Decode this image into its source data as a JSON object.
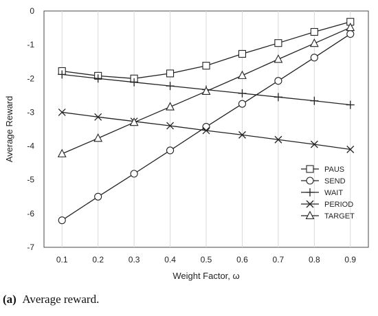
{
  "chart_data": {
    "type": "line",
    "x": [
      0.1,
      0.2,
      0.3,
      0.4,
      0.5,
      0.6,
      0.7,
      0.8,
      0.9
    ],
    "x_tick_labels": [
      "0.1",
      "0.2",
      "0.3",
      "0.4",
      "0.5",
      "0.6",
      "0.7",
      "0.8",
      "0.9"
    ],
    "y_tick_labels": [
      "0",
      "-1",
      "-2",
      "-3",
      "-4",
      "-5",
      "-6",
      "-7"
    ],
    "xlim": [
      0.05,
      0.95
    ],
    "ylim": [
      -7,
      0
    ],
    "xlabel": "Weight Factor, ω",
    "ylabel": "Average Reward",
    "grid": "vertical",
    "legend_position": "bottom-right",
    "series": [
      {
        "name": "PAUS",
        "marker": "square",
        "values": [
          -1.78,
          -1.92,
          -2.0,
          -1.85,
          -1.62,
          -1.27,
          -0.95,
          -0.62,
          -0.32
        ]
      },
      {
        "name": "SEND",
        "marker": "circle",
        "values": [
          -6.2,
          -5.5,
          -4.82,
          -4.13,
          -3.43,
          -2.75,
          -2.07,
          -1.38,
          -0.68
        ]
      },
      {
        "name": "WAIT",
        "marker": "plus",
        "values": [
          -1.88,
          -2.0,
          -2.11,
          -2.22,
          -2.33,
          -2.44,
          -2.55,
          -2.66,
          -2.78
        ]
      },
      {
        "name": "PERIOD",
        "marker": "x",
        "values": [
          -3.0,
          -3.14,
          -3.27,
          -3.4,
          -3.54,
          -3.67,
          -3.81,
          -3.95,
          -4.1
        ]
      },
      {
        "name": "TARGET",
        "marker": "triangle",
        "values": [
          -4.23,
          -3.77,
          -3.3,
          -2.84,
          -2.38,
          -1.91,
          -1.43,
          -0.96,
          -0.49
        ]
      }
    ]
  },
  "caption": {
    "label": "(a)",
    "text": "Average reward."
  }
}
